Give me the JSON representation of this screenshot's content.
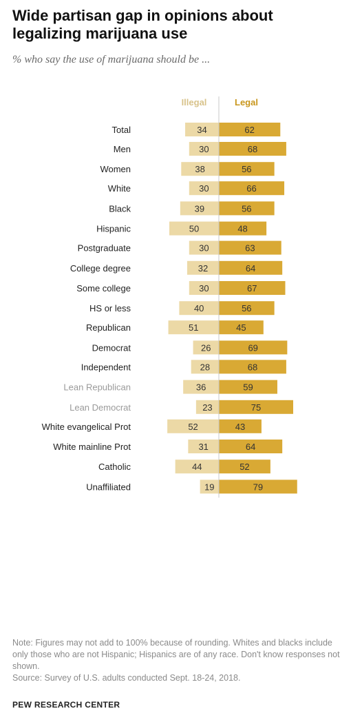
{
  "title": "Wide partisan gap in opinions about legalizing marijuana use",
  "subtitle": "% who say the use of marijuana should be ...",
  "note": "Note: Figures may not add to 100% because of rounding. Whites and blacks include only those who are not Hispanic; Hispanics are of any race. Don't know responses not shown.",
  "source": "Source: Survey of U.S. adults conducted Sept. 18-24, 2018.",
  "brand": "PEW RESEARCH CENTER",
  "colors": {
    "illegal": "#ecd9a6",
    "legal": "#d9a934",
    "illegal_label": "#d8c28a",
    "legal_label": "#c8961c",
    "lean_label": "#9a9a9a"
  },
  "chart_data": {
    "type": "bar",
    "orientation": "horizontal-diverging",
    "series": [
      {
        "name": "Illegal",
        "values": [
          34,
          30,
          38,
          30,
          39,
          50,
          30,
          32,
          30,
          40,
          51,
          26,
          28,
          36,
          23,
          52,
          31,
          44,
          19
        ]
      },
      {
        "name": "Legal",
        "values": [
          62,
          68,
          56,
          66,
          56,
          48,
          63,
          64,
          67,
          56,
          45,
          69,
          68,
          59,
          75,
          43,
          64,
          52,
          79
        ]
      }
    ],
    "categories": [
      "Total",
      "Men",
      "Women",
      "White",
      "Black",
      "Hispanic",
      "Postgraduate",
      "College degree",
      "Some college",
      "HS or less",
      "Republican",
      "Democrat",
      "Independent",
      "Lean Republican",
      "Lean Democrat",
      "White evangelical Prot",
      "White mainline Prot",
      "Catholic",
      "Unaffiliated"
    ],
    "groups": [
      [
        0
      ],
      [
        1,
        2
      ],
      [
        3,
        4,
        5
      ],
      [
        6,
        7,
        8,
        9
      ],
      [
        10,
        11
      ],
      [
        12,
        13,
        14
      ],
      [
        15,
        16,
        17,
        18
      ]
    ],
    "lean_categories": [
      13,
      14
    ]
  }
}
